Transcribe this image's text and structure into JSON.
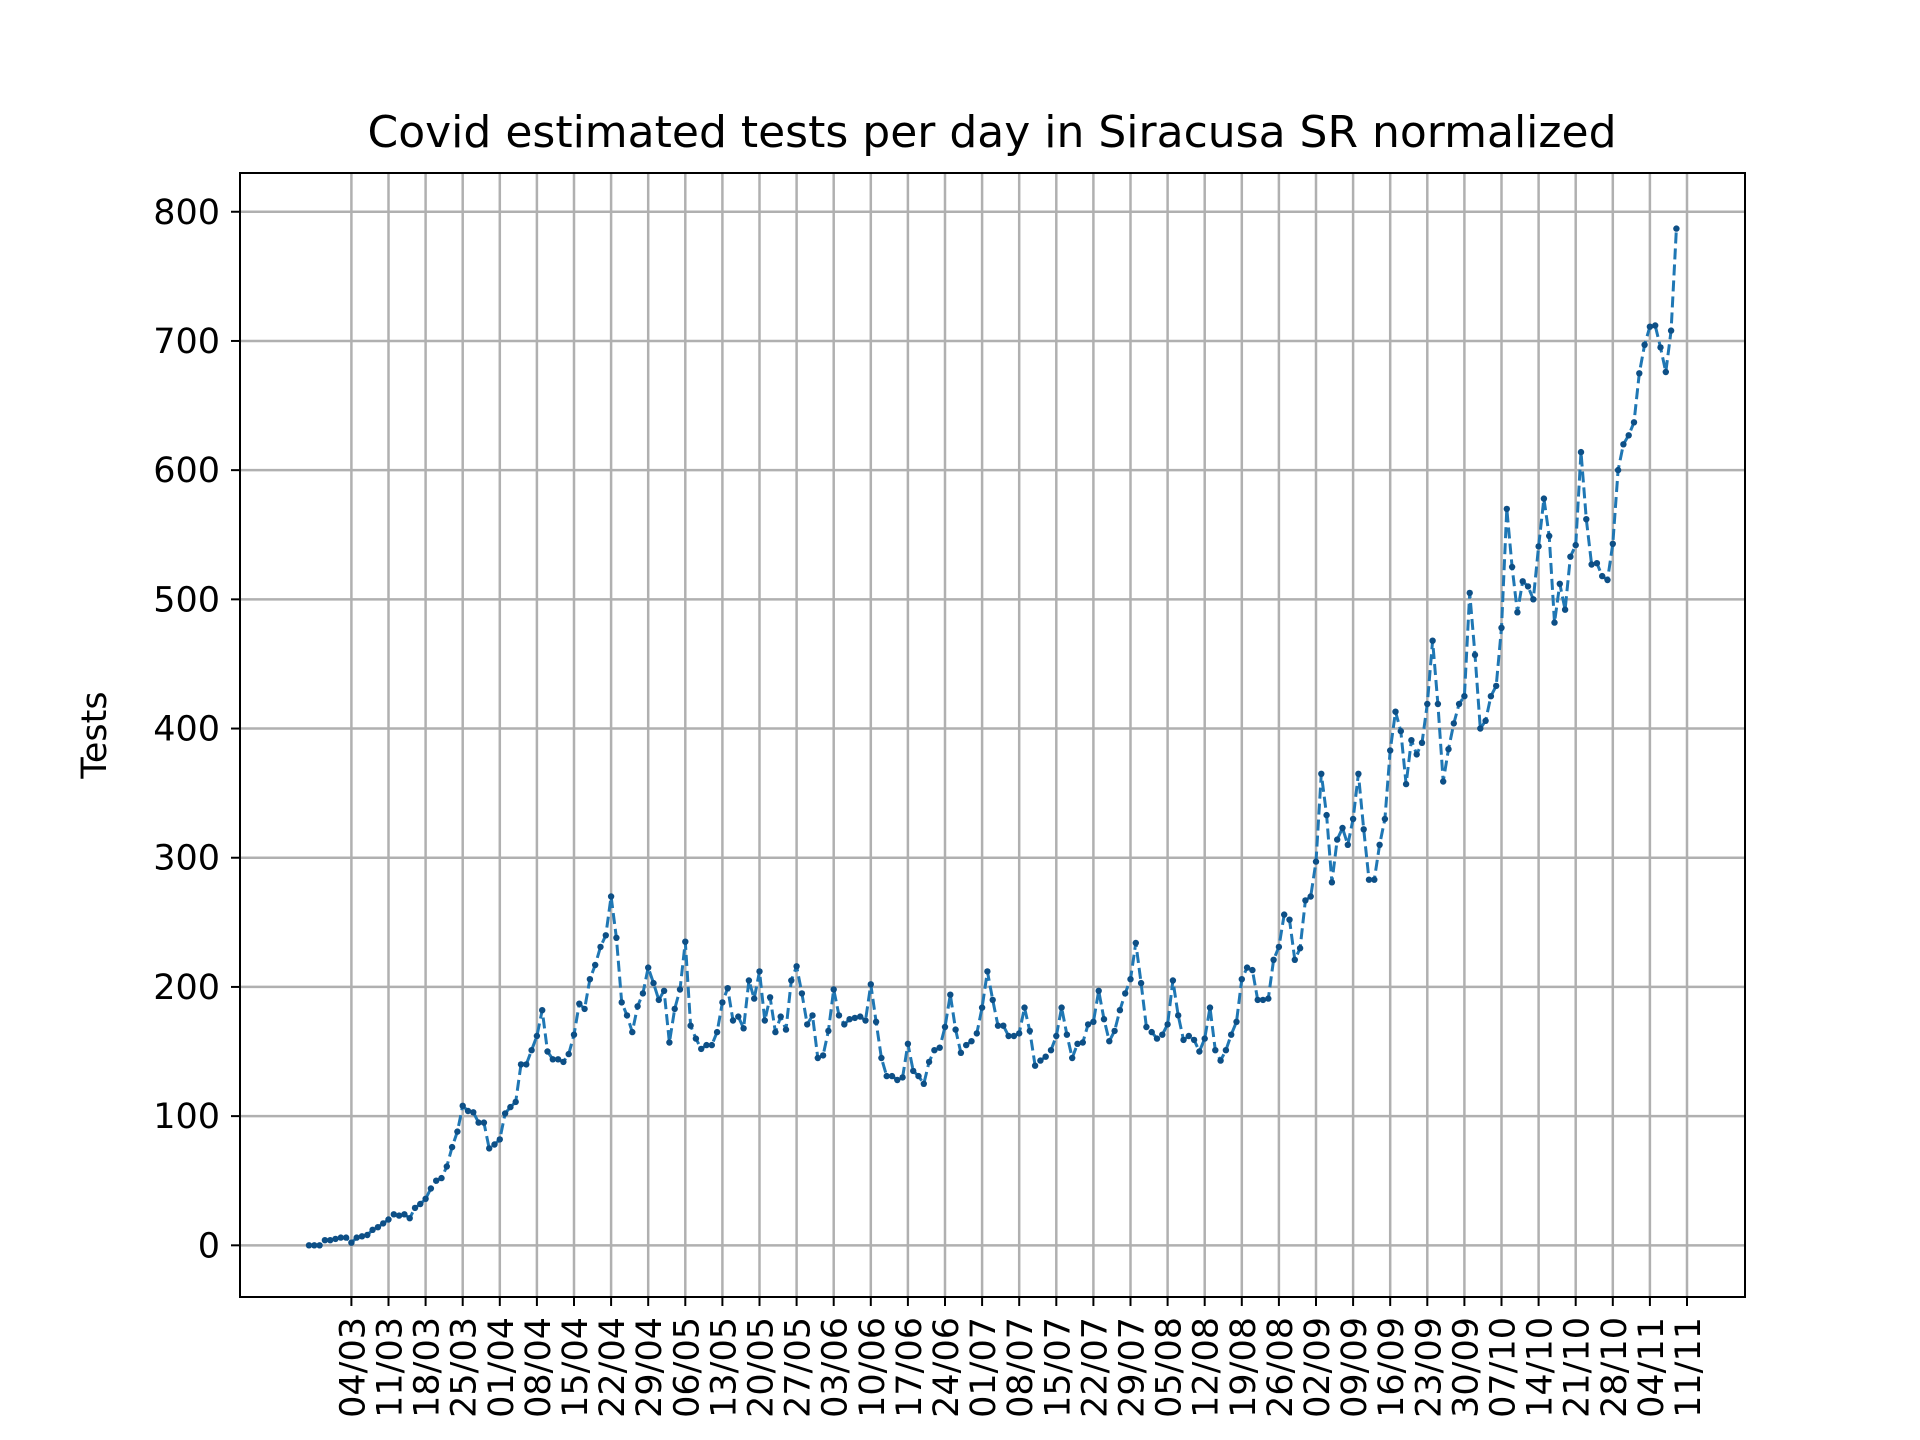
{
  "chart_data": {
    "type": "line",
    "title": "Covid estimated tests per day in Siracusa SR normalized",
    "xlabel": "",
    "ylabel": "Tests",
    "ylim": [
      -40,
      830
    ],
    "yticks": [
      0,
      100,
      200,
      300,
      400,
      500,
      600,
      700,
      800
    ],
    "xtick_labels": [
      "04/03",
      "11/03",
      "18/03",
      "25/03",
      "01/04",
      "08/04",
      "15/04",
      "22/04",
      "29/04",
      "06/05",
      "13/05",
      "20/05",
      "27/05",
      "03/06",
      "10/06",
      "17/06",
      "24/06",
      "01/07",
      "08/07",
      "15/07",
      "22/07",
      "29/07",
      "05/08",
      "12/08",
      "19/08",
      "26/08",
      "02/09",
      "09/09",
      "16/09",
      "23/09",
      "30/09",
      "07/10",
      "14/10",
      "21/10",
      "28/10",
      "04/11",
      "11/11"
    ],
    "grid": true,
    "series": [
      {
        "name": "",
        "color": "#1f77b4",
        "linestyle": "dashed",
        "marker": "dot",
        "start_date": "2020-02-25",
        "values": [
          0,
          0,
          0,
          4,
          4,
          5,
          6,
          6,
          2,
          6,
          7,
          8,
          12,
          14,
          17,
          20,
          24,
          23,
          24,
          21,
          29,
          32,
          36,
          44,
          50,
          52,
          61,
          76,
          88,
          108,
          104,
          103,
          95,
          95,
          75,
          78,
          82,
          102,
          107,
          111,
          140,
          140,
          151,
          162,
          182,
          150,
          144,
          144,
          142,
          148,
          163,
          187,
          183,
          206,
          217,
          231,
          240,
          270,
          238,
          188,
          178,
          165,
          185,
          195,
          215,
          203,
          190,
          197,
          157,
          183,
          198,
          235,
          170,
          160,
          152,
          155,
          155,
          165,
          188,
          199,
          174,
          177,
          168,
          205,
          191,
          212,
          174,
          192,
          165,
          177,
          167,
          205,
          216,
          195,
          171,
          178,
          145,
          147,
          166,
          198,
          178,
          171,
          175,
          176,
          177,
          174,
          202,
          173,
          145,
          131,
          131,
          128,
          130,
          156,
          135,
          131,
          125,
          142,
          151,
          153,
          169,
          194,
          167,
          149,
          155,
          158,
          164,
          184,
          212,
          190,
          170,
          170,
          162,
          162,
          164,
          184,
          166,
          139,
          143,
          146,
          151,
          162,
          184,
          163,
          145,
          156,
          157,
          171,
          173,
          197,
          175,
          158,
          166,
          182,
          195,
          206,
          234,
          203,
          169,
          165,
          160,
          163,
          171,
          205,
          178,
          159,
          162,
          159,
          150,
          160,
          184,
          151,
          143,
          151,
          163,
          173,
          206,
          215,
          213,
          190,
          190,
          191,
          221,
          231,
          256,
          252,
          221,
          230,
          267,
          270,
          297,
          365,
          333,
          281,
          314,
          323,
          310,
          330,
          365,
          322,
          283,
          283,
          310,
          330,
          383,
          413,
          398,
          357,
          391,
          380,
          389,
          419,
          468,
          419,
          359,
          384,
          404,
          419,
          425,
          505,
          457,
          400,
          406,
          425,
          433,
          478,
          570,
          525,
          490,
          514,
          510,
          500,
          541,
          578,
          549,
          482,
          512,
          492,
          533,
          542,
          614,
          562,
          527,
          528,
          518,
          515,
          543,
          600,
          620,
          627,
          637,
          675,
          697,
          711,
          712,
          695,
          676,
          708,
          787
        ]
      }
    ]
  }
}
